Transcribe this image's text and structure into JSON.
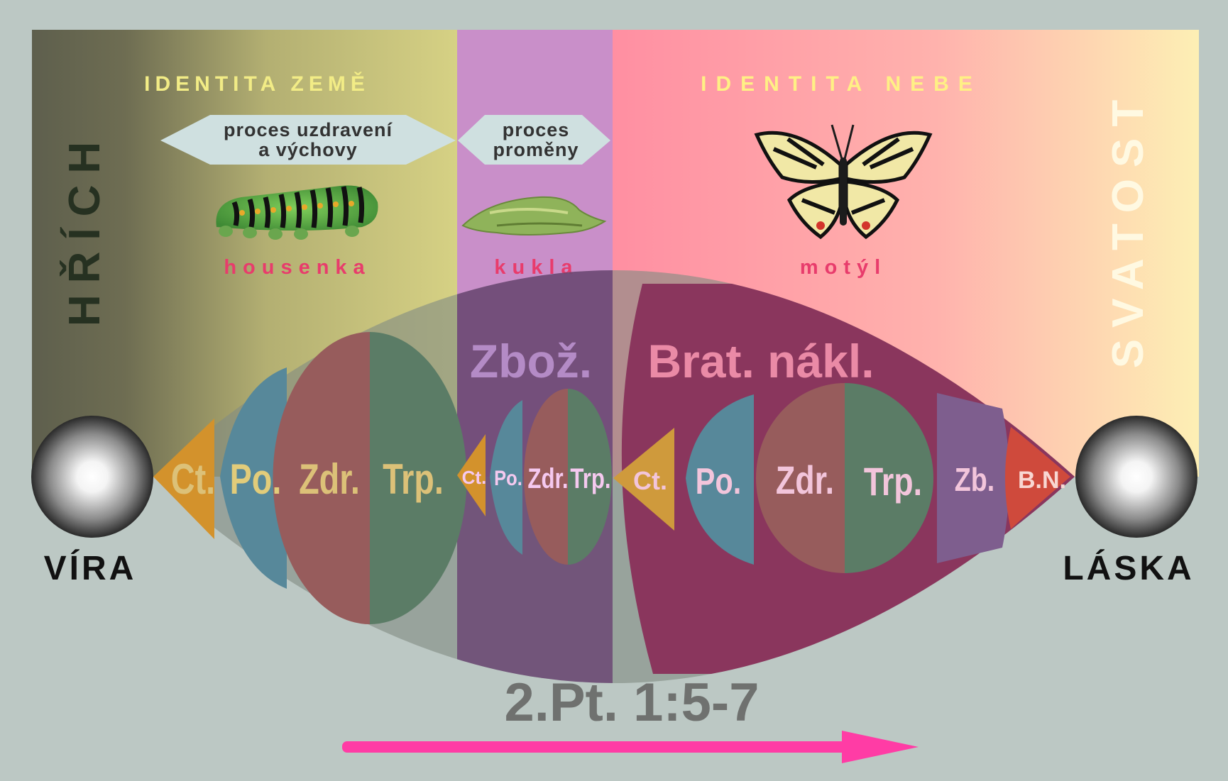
{
  "header": {
    "identity_earth": "IDENTITA ZEMĚ",
    "identity_heaven": "IDENTITA NEBE",
    "sin": "HŘÍCH",
    "holiness": "SVATOST"
  },
  "processes": {
    "healing_line1": "proces uzdravení",
    "healing_line2": "a výchovy",
    "change_line1": "proces",
    "change_line2": "proměny"
  },
  "stages": {
    "caterpillar": "housenka",
    "pupa": "kukla",
    "butterfly": "motýl"
  },
  "headings": {
    "piety": "Zbož.",
    "brotherly": "Brat. nákl."
  },
  "virtues": {
    "group1": [
      "Ct.",
      "Po.",
      "Zdr.",
      "Trp."
    ],
    "group2": [
      "Ct.",
      "Po.",
      "Zdr.",
      "Trp."
    ],
    "group3": [
      "Ct.",
      "Po.",
      "Zdr.",
      "Trp.",
      "Zb.",
      "B.N."
    ]
  },
  "endpoints": {
    "faith": "VÍRA",
    "love": "LÁSKA"
  },
  "reference": "2.Pt. 1:5-7",
  "colors": {
    "background": "#bcc8c4",
    "arrow": "#ff3ca5",
    "stage_label": "#e83c6c",
    "title_yellow": "#f2ec86",
    "ct_orange": "#d3922c",
    "po_blue": "#57889a",
    "zdr_red": "#975c5c",
    "trp_green": "#5b7c66",
    "zb_purple": "#7e5e8e",
    "bn_red": "#cf4a3c"
  }
}
